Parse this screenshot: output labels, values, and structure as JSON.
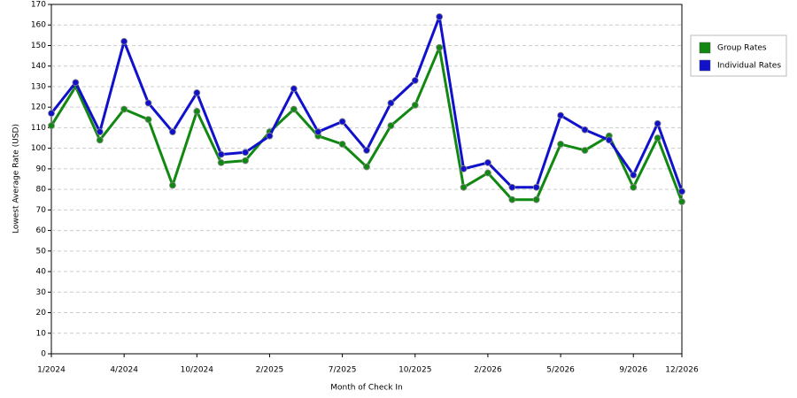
{
  "chart_data": {
    "type": "line",
    "x_label": "Month of Check In",
    "y_label": "Lowest Average Rate (USD)",
    "categories": [
      "1/2024",
      null,
      null,
      "4/2024",
      null,
      null,
      "10/2024",
      null,
      null,
      "2/2025",
      null,
      null,
      "7/2025",
      null,
      null,
      "10/2025",
      null,
      null,
      "2/2026",
      null,
      null,
      "5/2026",
      null,
      null,
      "9/2026",
      null,
      "12/2026"
    ],
    "series": [
      {
        "name": "Group Rates",
        "color": "#118811",
        "values": [
          111,
          130,
          104,
          119,
          114,
          82,
          118,
          93,
          94,
          108,
          119,
          106,
          102,
          91,
          111,
          121,
          149,
          81,
          88,
          75,
          75,
          102,
          99,
          106,
          81,
          105,
          74
        ]
      },
      {
        "name": "Individual Rates",
        "color": "#1111cc",
        "values": [
          117,
          132,
          108,
          152,
          122,
          108,
          127,
          97,
          98,
          106,
          129,
          108,
          113,
          99,
          122,
          133,
          164,
          90,
          93,
          81,
          81,
          116,
          109,
          104,
          87,
          112,
          79
        ]
      }
    ],
    "ylim": [
      0,
      170
    ],
    "yticks": [
      0,
      10,
      20,
      30,
      40,
      50,
      60,
      70,
      80,
      90,
      100,
      110,
      120,
      130,
      140,
      150,
      160,
      170
    ],
    "grid": true,
    "legend": "right"
  }
}
